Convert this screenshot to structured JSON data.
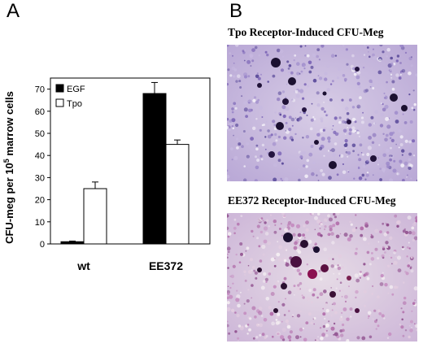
{
  "panels": {
    "a_label": "A",
    "b_label": "B"
  },
  "chart_data": {
    "type": "bar",
    "categories": [
      "wt",
      "EE372"
    ],
    "series": [
      {
        "name": "EGF",
        "values": [
          1,
          68
        ],
        "errors": [
          0.3,
          5
        ],
        "color": "#000000"
      },
      {
        "name": "Tpo",
        "values": [
          25,
          45
        ],
        "errors": [
          3,
          2
        ],
        "color": "#ffffff"
      }
    ],
    "ylabel_prefix": "CFU-meg per 10",
    "ylabel_sup": "5",
    "ylabel_suffix": " marrow cells",
    "ylim": [
      0,
      75
    ],
    "yticks": [
      "0",
      "10",
      "20",
      "30",
      "40",
      "50",
      "60",
      "70"
    ],
    "legend_position": "top-left"
  },
  "micrographs": [
    {
      "title": "Tpo Receptor-Induced CFU-Meg"
    },
    {
      "title": "EE372 Receptor-Induced CFU-Meg"
    }
  ]
}
